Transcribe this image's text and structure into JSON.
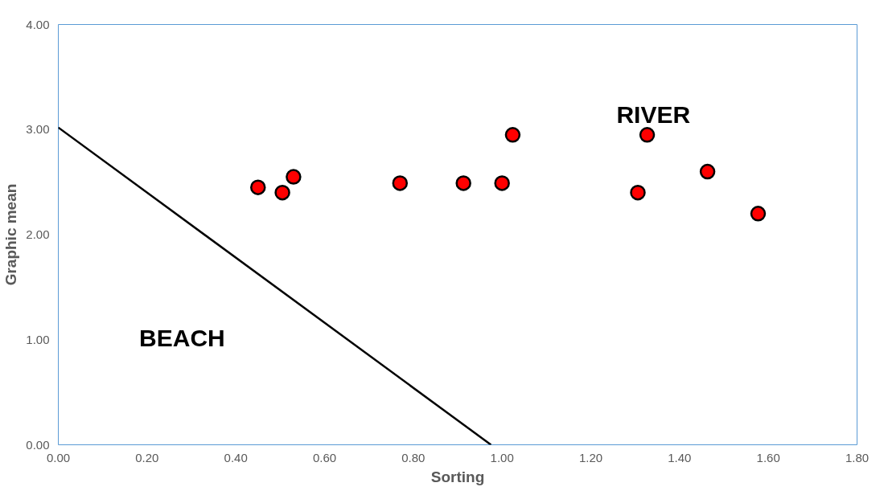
{
  "chart_data": {
    "type": "scatter",
    "xlabel": "Sorting",
    "ylabel": "Graphic mean",
    "x": [
      0.45,
      0.505,
      0.53,
      0.77,
      0.913,
      1.0,
      1.024,
      1.306,
      1.327,
      1.463,
      1.577
    ],
    "series": [
      {
        "color": "#ff0000",
        "marker": "circle",
        "values": [
          2.45,
          2.4,
          2.55,
          2.49,
          2.49,
          2.49,
          2.95,
          2.4,
          2.95,
          2.6,
          2.2
        ]
      },
      {
        "type": "line",
        "marker": "none",
        "color": "#000000",
        "x": [
          0,
          0.975
        ],
        "values": [
          3.02,
          0
        ]
      }
    ],
    "annotations": [
      "RIVER",
      "BEACH"
    ],
    "xlim": [
      0,
      1.8
    ],
    "ylim": [
      0,
      4
    ],
    "xticks": [
      {
        "value": 0,
        "label": "0.00"
      },
      {
        "value": 0.2,
        "label": "0.20"
      },
      {
        "value": 0.4,
        "label": "0.40"
      },
      {
        "value": 0.6,
        "label": "0.60"
      },
      {
        "value": 0.8,
        "label": "0.80"
      },
      {
        "value": 1.0,
        "label": "1.00"
      },
      {
        "value": 1.2,
        "label": "1.20"
      },
      {
        "value": 1.4,
        "label": "1.40"
      },
      {
        "value": 1.6,
        "label": "1.60"
      },
      {
        "value": 1.8,
        "label": "1.80"
      }
    ],
    "yticks": [
      {
        "value": 0,
        "label": "0.00"
      },
      {
        "value": 1,
        "label": "1.00"
      },
      {
        "value": 2,
        "label": "2.00"
      },
      {
        "value": 3,
        "label": "3.00"
      },
      {
        "value": 4,
        "label": "4.00"
      }
    ],
    "grid": false,
    "line_style": "solid"
  }
}
